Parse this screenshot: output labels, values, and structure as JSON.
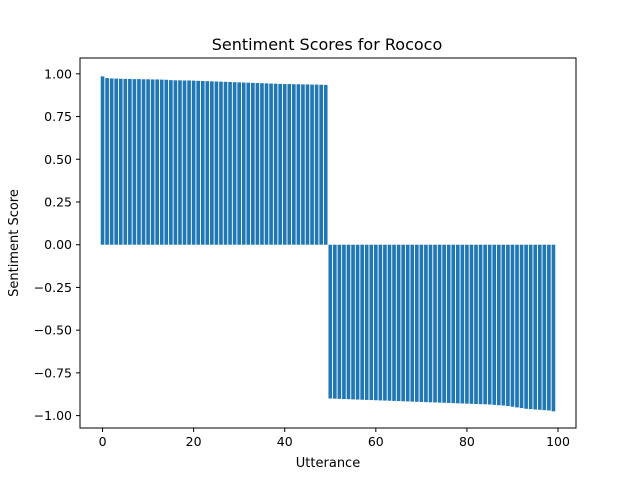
{
  "chart_data": {
    "type": "bar",
    "title": "Sentiment Scores for Rococo",
    "xlabel": "Utterance",
    "ylabel": "Sentiment Score",
    "xlim": [
      -4.95,
      103.95
    ],
    "ylim": [
      -1.0725,
      1.0925
    ],
    "xticks": [
      0,
      20,
      40,
      60,
      80,
      100
    ],
    "xtick_labels": [
      "0",
      "20",
      "40",
      "60",
      "80",
      "100"
    ],
    "yticks": [
      -1.0,
      -0.75,
      -0.5,
      -0.25,
      0.0,
      0.25,
      0.5,
      0.75,
      1.0
    ],
    "ytick_labels": [
      "−1.00",
      "−0.75",
      "−0.50",
      "−0.25",
      "0.00",
      "0.25",
      "0.50",
      "0.75",
      "1.00"
    ],
    "grid": false,
    "bar_color": "#1f77b4",
    "x": [
      0,
      1,
      2,
      3,
      4,
      5,
      6,
      7,
      8,
      9,
      10,
      11,
      12,
      13,
      14,
      15,
      16,
      17,
      18,
      19,
      20,
      21,
      22,
      23,
      24,
      25,
      26,
      27,
      28,
      29,
      30,
      31,
      32,
      33,
      34,
      35,
      36,
      37,
      38,
      39,
      40,
      41,
      42,
      43,
      44,
      45,
      46,
      47,
      48,
      49,
      50,
      51,
      52,
      53,
      54,
      55,
      56,
      57,
      58,
      59,
      60,
      61,
      62,
      63,
      64,
      65,
      66,
      67,
      68,
      69,
      70,
      71,
      72,
      73,
      74,
      75,
      76,
      77,
      78,
      79,
      80,
      81,
      82,
      83,
      84,
      85,
      86,
      87,
      88,
      89,
      90,
      91,
      92,
      93,
      94,
      95,
      96,
      97,
      98,
      99
    ],
    "values": [
      0.985,
      0.975,
      0.973,
      0.972,
      0.971,
      0.97,
      0.97,
      0.969,
      0.969,
      0.968,
      0.968,
      0.967,
      0.967,
      0.966,
      0.965,
      0.963,
      0.962,
      0.962,
      0.961,
      0.961,
      0.96,
      0.959,
      0.958,
      0.957,
      0.956,
      0.955,
      0.954,
      0.953,
      0.952,
      0.951,
      0.95,
      0.949,
      0.948,
      0.947,
      0.946,
      0.945,
      0.944,
      0.943,
      0.942,
      0.941,
      0.94,
      0.94,
      0.939,
      0.939,
      0.938,
      0.938,
      0.937,
      0.937,
      0.936,
      0.935,
      -0.9,
      -0.901,
      -0.902,
      -0.903,
      -0.904,
      -0.905,
      -0.906,
      -0.907,
      -0.908,
      -0.909,
      -0.91,
      -0.911,
      -0.912,
      -0.913,
      -0.914,
      -0.915,
      -0.916,
      -0.917,
      -0.918,
      -0.919,
      -0.92,
      -0.921,
      -0.922,
      -0.923,
      -0.924,
      -0.925,
      -0.926,
      -0.927,
      -0.928,
      -0.929,
      -0.93,
      -0.931,
      -0.932,
      -0.933,
      -0.934,
      -0.935,
      -0.937,
      -0.939,
      -0.941,
      -0.944,
      -0.948,
      -0.952,
      -0.956,
      -0.96,
      -0.962,
      -0.964,
      -0.966,
      -0.968,
      -0.97,
      -0.975
    ]
  }
}
